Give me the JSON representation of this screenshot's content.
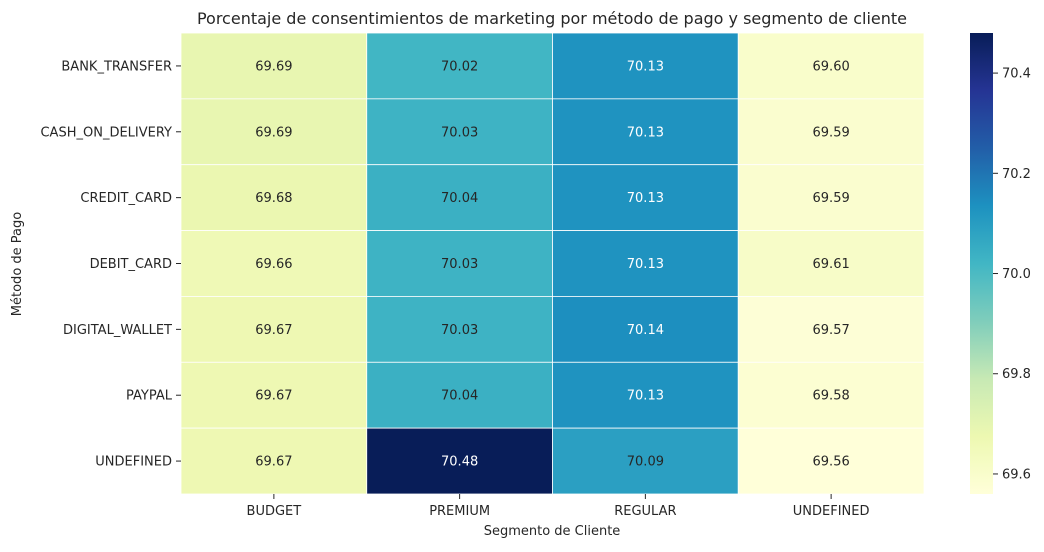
{
  "chart_data": {
    "type": "heatmap",
    "title": "Porcentaje de consentimientos de marketing por método de pago y segmento de cliente",
    "xlabel": "Segmento de Cliente",
    "ylabel": "Método de Pago",
    "x_categories": [
      "BUDGET",
      "PREMIUM",
      "REGULAR",
      "UNDEFINED"
    ],
    "y_categories": [
      "BANK_TRANSFER",
      "CASH_ON_DELIVERY",
      "CREDIT_CARD",
      "DEBIT_CARD",
      "DIGITAL_WALLET",
      "PAYPAL",
      "UNDEFINED"
    ],
    "values": [
      [
        69.69,
        70.02,
        70.13,
        69.6
      ],
      [
        69.69,
        70.03,
        70.13,
        69.59
      ],
      [
        69.68,
        70.04,
        70.13,
        69.59
      ],
      [
        69.66,
        70.03,
        70.13,
        69.61
      ],
      [
        69.67,
        70.03,
        70.14,
        69.57
      ],
      [
        69.67,
        70.04,
        70.13,
        69.58
      ],
      [
        69.67,
        70.48,
        70.09,
        69.56
      ]
    ],
    "value_format": "2 decimals",
    "colormap": "YlGnBu",
    "colorbar": {
      "vmin": 69.56,
      "vmax": 70.48,
      "ticks": [
        69.6,
        69.8,
        70.0,
        70.2,
        70.4
      ],
      "tick_labels": [
        "69.6",
        "69.8",
        "70.0",
        "70.2",
        "70.4"
      ]
    },
    "grid_lines_color": "#ffffff"
  }
}
